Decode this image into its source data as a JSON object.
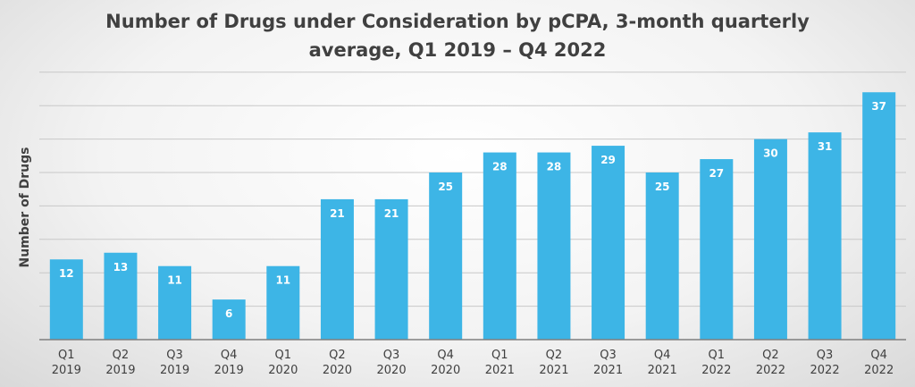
{
  "chart_data": {
    "type": "bar",
    "title_lines": [
      "Number of Drugs under Consideration by pCPA, 3-month quarterly",
      "average, Q1 2019 – Q4 2022"
    ],
    "xlabel": "",
    "ylabel": "Number of Drugs",
    "categories": [
      [
        "Q1",
        "2019"
      ],
      [
        "Q2",
        "2019"
      ],
      [
        "Q3",
        "2019"
      ],
      [
        "Q4",
        "2019"
      ],
      [
        "Q1",
        "2020"
      ],
      [
        "Q2",
        "2020"
      ],
      [
        "Q3",
        "2020"
      ],
      [
        "Q4",
        "2020"
      ],
      [
        "Q1",
        "2021"
      ],
      [
        "Q2",
        "2021"
      ],
      [
        "Q3",
        "2021"
      ],
      [
        "Q4",
        "2021"
      ],
      [
        "Q1",
        "2022"
      ],
      [
        "Q2",
        "2022"
      ],
      [
        "Q3",
        "2022"
      ],
      [
        "Q4",
        "2022"
      ]
    ],
    "values": [
      12,
      13,
      11,
      6,
      11,
      21,
      21,
      25,
      28,
      28,
      29,
      25,
      27,
      30,
      31,
      37
    ],
    "ylim": [
      0,
      40
    ],
    "grid_step": 5,
    "grid": true,
    "legend": false,
    "bar_color": "#3db5e6"
  }
}
